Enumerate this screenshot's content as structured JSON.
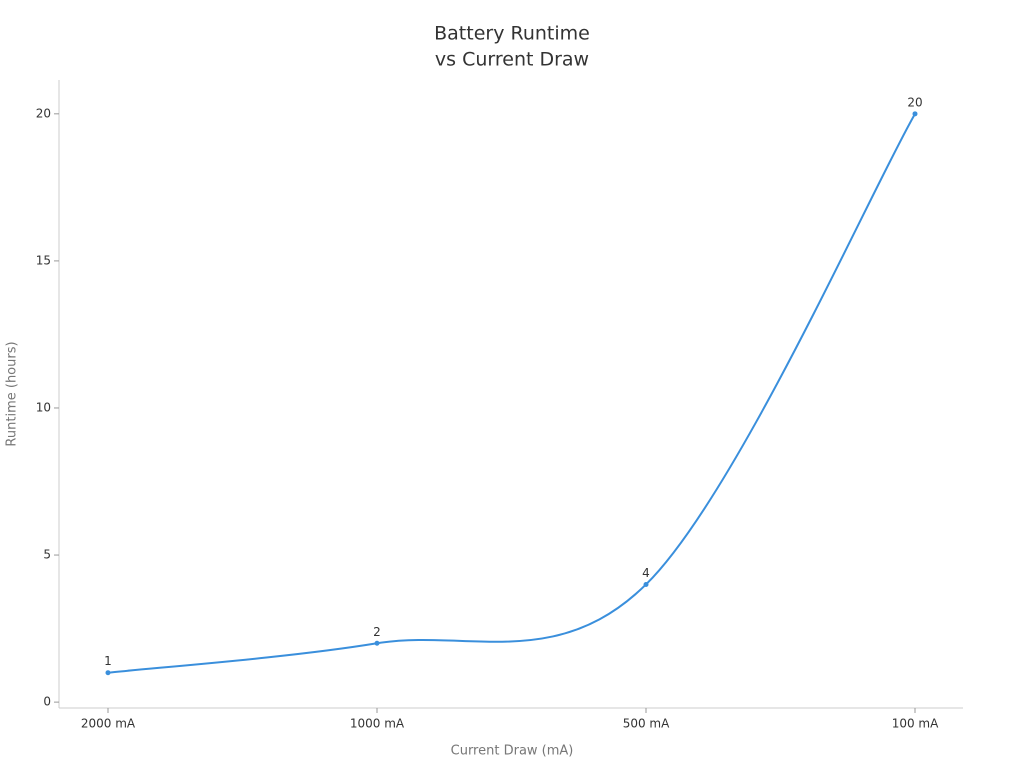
{
  "chart_data": {
    "type": "line",
    "title": [
      "Battery Runtime",
      "vs Current Draw"
    ],
    "x_label": "Current Draw (mA)",
    "y_label": "Runtime (hours)",
    "categories": [
      "2000 mA",
      "1000 mA",
      "500 mA",
      "100 mA"
    ],
    "values": [
      1,
      2,
      4,
      20
    ],
    "color": "#3a8fdc",
    "ylim": [
      -0.2,
      21.15
    ],
    "yticks": [
      0,
      5,
      10,
      15,
      20
    ],
    "data_labels": true
  }
}
